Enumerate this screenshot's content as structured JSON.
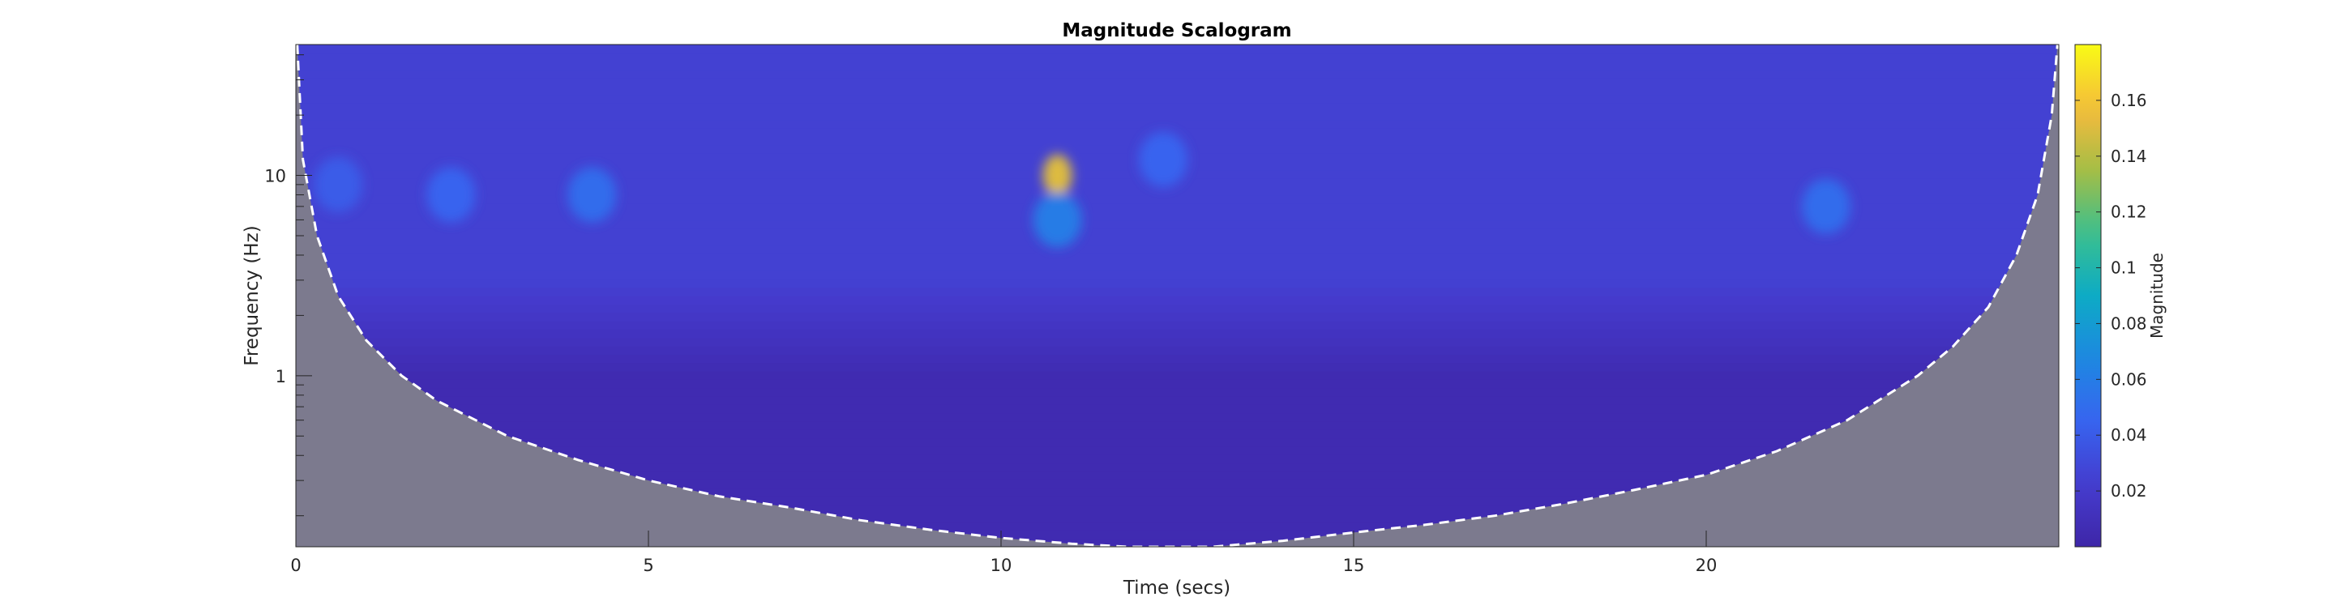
{
  "chart_data": {
    "type": "heatmap",
    "title": "Magnitude Scalogram",
    "xlabel": "Time (secs)",
    "ylabel": "Frequency (Hz)",
    "xlim": [
      0,
      25
    ],
    "ylim": [
      0.14,
      45
    ],
    "yscale": "log",
    "x_ticks": [
      0,
      5,
      10,
      15,
      20
    ],
    "x_tick_labels": [
      "0",
      "5",
      "10",
      "15",
      "20"
    ],
    "y_ticks": [
      1,
      10
    ],
    "y_tick_labels": [
      "1",
      "10"
    ],
    "colorbar": {
      "label": "Magnitude",
      "range": [
        0,
        0.18
      ],
      "ticks": [
        0.02,
        0.04,
        0.06,
        0.08,
        0.1,
        0.12,
        0.14,
        0.16
      ],
      "tick_labels": [
        "0.02",
        "0.04",
        "0.06",
        "0.08",
        "0.1",
        "0.12",
        "0.14",
        "0.16"
      ],
      "colormap": "parula"
    },
    "cone_of_influence": {
      "style": "white dashed line, shaded gray outside",
      "shade_color": "#7c7a8e",
      "t": [
        0.02,
        0.1,
        0.3,
        0.6,
        1.0,
        1.5,
        2.0,
        3.0,
        4.0,
        5.0,
        6.0,
        7.0,
        8.0,
        9.0,
        10.0,
        11.0,
        11.8,
        13.0,
        14.0,
        15.0,
        16.0,
        17.0,
        18.0,
        19.0,
        20.0,
        21.0,
        22.0,
        23.0,
        23.5,
        24.0,
        24.4,
        24.7,
        24.9,
        24.98
      ],
      "f": [
        45,
        12,
        5.0,
        2.5,
        1.5,
        1.0,
        0.75,
        0.5,
        0.38,
        0.3,
        0.25,
        0.22,
        0.19,
        0.17,
        0.155,
        0.145,
        0.14,
        0.14,
        0.15,
        0.165,
        0.18,
        0.2,
        0.23,
        0.27,
        0.32,
        0.42,
        0.6,
        1.0,
        1.4,
        2.2,
        4.0,
        8.0,
        20,
        45
      ]
    },
    "notable_features": [
      {
        "time": 10.8,
        "frequency": 10,
        "magnitude": 0.15,
        "description": "peak"
      },
      {
        "time": 10.8,
        "frequency": 6,
        "magnitude": 0.06
      },
      {
        "time": 4.2,
        "frequency": 8,
        "magnitude": 0.05
      },
      {
        "time": 2.2,
        "frequency": 8,
        "magnitude": 0.045
      },
      {
        "time": 0.6,
        "frequency": 9,
        "magnitude": 0.04
      },
      {
        "time": 21.7,
        "frequency": 7,
        "magnitude": 0.05
      },
      {
        "time": 12.3,
        "frequency": 12,
        "magnitude": 0.045
      }
    ],
    "background_level": {
      "frequency_above_3Hz": 0.025,
      "frequency_below_1Hz": 0.005
    }
  }
}
